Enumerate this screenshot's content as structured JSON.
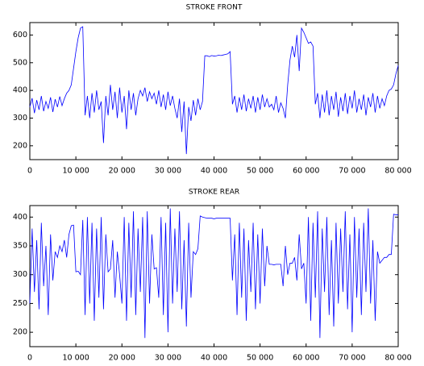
{
  "chart_data": [
    {
      "type": "line",
      "title": "STROKE FRONT",
      "color": "#0000ff",
      "xlim": [
        0,
        80000
      ],
      "ylim": [
        150,
        645
      ],
      "xticks": [
        0,
        {
          "value": 10000,
          "label": "10 000"
        },
        {
          "value": 20000,
          "label": "20 000"
        },
        {
          "value": 30000,
          "label": "30 000"
        },
        {
          "value": 40000,
          "label": "40 000"
        },
        {
          "value": 50000,
          "label": "50 000"
        },
        {
          "value": 60000,
          "label": "60 000"
        },
        {
          "value": 70000,
          "label": "70 000"
        },
        {
          "value": 80000,
          "label": "80 000"
        }
      ],
      "yticks": [
        200,
        300,
        400,
        500,
        600
      ],
      "x": [
        0,
        500,
        1000,
        1500,
        2000,
        2500,
        3000,
        3500,
        4000,
        4500,
        5000,
        5500,
        6000,
        6500,
        7000,
        7500,
        8000,
        8500,
        9000,
        9500,
        10000,
        10500,
        11000,
        11500,
        12000,
        12500,
        13000,
        13500,
        14000,
        14500,
        15000,
        15500,
        16000,
        16500,
        17000,
        17500,
        18000,
        18500,
        19000,
        19500,
        20000,
        20500,
        21000,
        21500,
        22000,
        22500,
        23000,
        23500,
        24000,
        24500,
        25000,
        25500,
        26000,
        26500,
        27000,
        27500,
        28000,
        28500,
        29000,
        29500,
        30000,
        30500,
        31000,
        31500,
        32000,
        32500,
        33000,
        33500,
        34000,
        34500,
        35000,
        35500,
        36000,
        36500,
        37000,
        37500,
        38000,
        38500,
        39000,
        39500,
        40000,
        40500,
        41000,
        41500,
        42000,
        42500,
        43000,
        43500,
        44000,
        44500,
        45000,
        45500,
        46000,
        46500,
        47000,
        47500,
        48000,
        48500,
        49000,
        49500,
        50000,
        50500,
        51000,
        51500,
        52000,
        52500,
        53000,
        53500,
        54000,
        54500,
        55000,
        55500,
        56000,
        56500,
        57000,
        57500,
        58000,
        58500,
        59000,
        59500,
        60000,
        60500,
        61000,
        61500,
        62000,
        62500,
        63000,
        63500,
        64000,
        64500,
        65000,
        65500,
        66000,
        66500,
        67000,
        67500,
        68000,
        68500,
        69000,
        69500,
        70000,
        70500,
        71000,
        71500,
        72000,
        72500,
        73000,
        73500,
        74000,
        74500,
        75000,
        75500,
        76000,
        76500,
        77000,
        77500,
        78000,
        78500,
        79000,
        79500,
        80000
      ],
      "values": [
        340,
        372,
        318,
        365,
        330,
        380,
        325,
        360,
        335,
        375,
        322,
        368,
        340,
        378,
        345,
        370,
        390,
        400,
        420,
        480,
        540,
        590,
        625,
        630,
        310,
        380,
        300,
        390,
        320,
        400,
        330,
        360,
        210,
        380,
        310,
        420,
        330,
        395,
        300,
        410,
        320,
        380,
        260,
        400,
        330,
        390,
        310,
        370,
        400,
        380,
        410,
        360,
        395,
        370,
        390,
        350,
        400,
        340,
        385,
        330,
        395,
        345,
        380,
        335,
        300,
        370,
        250,
        360,
        170,
        340,
        290,
        365,
        310,
        370,
        330,
        360,
        525,
        525,
        522,
        526,
        524,
        525,
        527,
        526,
        528,
        530,
        532,
        540,
        350,
        380,
        320,
        375,
        330,
        385,
        325,
        370,
        335,
        380,
        320,
        375,
        330,
        385,
        340,
        370,
        340,
        350,
        330,
        380,
        320,
        355,
        335,
        300,
        420,
        510,
        560,
        520,
        600,
        470,
        625,
        610,
        590,
        570,
        575,
        560,
        350,
        390,
        300,
        385,
        320,
        400,
        310,
        380,
        330,
        395,
        305,
        375,
        325,
        390,
        315,
        380,
        335,
        400,
        320,
        370,
        330,
        385,
        310,
        375,
        340,
        390,
        320,
        380,
        335,
        370,
        345,
        380,
        400,
        405,
        420,
        460,
        490
      ]
    },
    {
      "type": "line",
      "title": "STROKE REAR",
      "color": "#0000ff",
      "xlim": [
        0,
        80000
      ],
      "ylim": [
        175,
        420
      ],
      "xticks": [
        0,
        {
          "value": 10000,
          "label": "10 000"
        },
        {
          "value": 20000,
          "label": "20 000"
        },
        {
          "value": 30000,
          "label": "30 000"
        },
        {
          "value": 40000,
          "label": "40 000"
        },
        {
          "value": 50000,
          "label": "50 000"
        },
        {
          "value": 60000,
          "label": "60 000"
        },
        {
          "value": 70000,
          "label": "70 000"
        },
        {
          "value": 80000,
          "label": "80 000"
        }
      ],
      "yticks": [
        200,
        250,
        300,
        350,
        400
      ],
      "x": [
        0,
        500,
        1000,
        1500,
        2000,
        2500,
        3000,
        3500,
        4000,
        4500,
        5000,
        5500,
        6000,
        6500,
        7000,
        7500,
        8000,
        8500,
        9000,
        9500,
        10000,
        10500,
        11000,
        11500,
        12000,
        12500,
        13000,
        13500,
        14000,
        14500,
        15000,
        15500,
        16000,
        16500,
        17000,
        17500,
        18000,
        18500,
        19000,
        19500,
        20000,
        20500,
        21000,
        21500,
        22000,
        22500,
        23000,
        23500,
        24000,
        24500,
        25000,
        25500,
        26000,
        26500,
        27000,
        27500,
        28000,
        28500,
        29000,
        29500,
        30000,
        30500,
        31000,
        31500,
        32000,
        32500,
        33000,
        33500,
        34000,
        34500,
        35000,
        35500,
        36000,
        36500,
        37000,
        37500,
        38000,
        38500,
        39000,
        39500,
        40000,
        40500,
        41000,
        41500,
        42000,
        42500,
        43000,
        43500,
        44000,
        44500,
        45000,
        45500,
        46000,
        46500,
        47000,
        47500,
        48000,
        48500,
        49000,
        49500,
        50000,
        50500,
        51000,
        51500,
        52000,
        52500,
        53000,
        53500,
        54000,
        54500,
        55000,
        55500,
        56000,
        56500,
        57000,
        57500,
        58000,
        58500,
        59000,
        59500,
        60000,
        60500,
        61000,
        61500,
        62000,
        62500,
        63000,
        63500,
        64000,
        64500,
        65000,
        65500,
        66000,
        66500,
        67000,
        67500,
        68000,
        68500,
        69000,
        69500,
        70000,
        70500,
        71000,
        71500,
        72000,
        72500,
        73000,
        73500,
        74000,
        74500,
        75000,
        75500,
        76000,
        76500,
        77000,
        77500,
        78000,
        78500,
        79000,
        79500,
        80000
      ],
      "values": [
        250,
        380,
        270,
        360,
        240,
        390,
        280,
        350,
        230,
        370,
        290,
        340,
        330,
        350,
        340,
        360,
        330,
        370,
        385,
        386,
        305,
        306,
        300,
        395,
        230,
        400,
        250,
        390,
        220,
        380,
        260,
        400,
        240,
        370,
        305,
        310,
        360,
        260,
        340,
        300,
        250,
        400,
        220,
        390,
        260,
        410,
        230,
        380,
        270,
        400,
        190,
        410,
        250,
        370,
        310,
        312,
        260,
        400,
        230,
        390,
        200,
        415,
        250,
        380,
        270,
        410,
        240,
        360,
        210,
        390,
        260,
        340,
        335,
        345,
        402,
        400,
        399,
        398,
        398,
        398,
        397,
        398,
        398,
        398,
        398,
        398,
        398,
        398,
        290,
        370,
        230,
        390,
        260,
        380,
        220,
        360,
        270,
        390,
        240,
        370,
        250,
        380,
        280,
        350,
        318,
        318,
        317,
        318,
        318,
        318,
        280,
        350,
        300,
        320,
        320,
        330,
        290,
        370,
        310,
        320,
        250,
        400,
        220,
        390,
        260,
        410,
        190,
        380,
        270,
        400,
        230,
        360,
        210,
        390,
        250,
        380,
        270,
        410,
        240,
        370,
        200,
        400,
        260,
        380,
        230,
        390,
        270,
        415,
        250,
        360,
        220,
        340,
        320,
        325,
        330,
        330,
        335,
        335,
        405,
        404,
        404
      ]
    }
  ]
}
